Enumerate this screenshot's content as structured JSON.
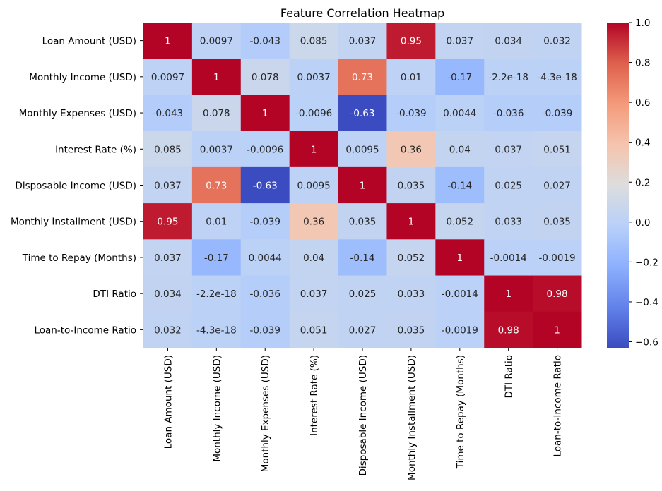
{
  "chart_data": {
    "type": "heatmap",
    "title": "Feature Correlation Heatmap",
    "xlabel": "",
    "ylabel": "",
    "labels": [
      "Loan Amount (USD)",
      "Monthly Income (USD)",
      "Monthly Expenses (USD)",
      "Interest Rate (%)",
      "Disposable Income (USD)",
      "Monthly Installment (USD)",
      "Time to Repay (Months)",
      "DTI Ratio",
      "Loan-to-Income Ratio"
    ],
    "values": [
      [
        1,
        0.0097,
        -0.043,
        0.085,
        0.037,
        0.95,
        0.037,
        0.034,
        0.032
      ],
      [
        0.0097,
        1,
        0.078,
        0.0037,
        0.73,
        0.01,
        -0.17,
        -2.2e-18,
        -4.3e-18
      ],
      [
        -0.043,
        0.078,
        1,
        -0.0096,
        -0.63,
        -0.039,
        0.0044,
        -0.036,
        -0.039
      ],
      [
        0.085,
        0.0037,
        -0.0096,
        1,
        0.0095,
        0.36,
        0.04,
        0.037,
        0.051
      ],
      [
        0.037,
        0.73,
        -0.63,
        0.0095,
        1,
        0.035,
        -0.14,
        0.025,
        0.027
      ],
      [
        0.95,
        0.01,
        -0.039,
        0.36,
        0.035,
        1,
        0.052,
        0.033,
        0.035
      ],
      [
        0.037,
        -0.17,
        0.0044,
        0.04,
        -0.14,
        0.052,
        1,
        -0.0014,
        -0.0019
      ],
      [
        0.034,
        -2.2e-18,
        -0.036,
        0.037,
        0.025,
        0.033,
        -0.0014,
        1,
        0.98
      ],
      [
        0.032,
        -4.3e-18,
        -0.039,
        0.051,
        0.027,
        0.035,
        -0.0019,
        0.98,
        1
      ]
    ],
    "annotations": [
      [
        "1",
        "0.0097",
        "-0.043",
        "0.085",
        "0.037",
        "0.95",
        "0.037",
        "0.034",
        "0.032"
      ],
      [
        "0.0097",
        "1",
        "0.078",
        "0.0037",
        "0.73",
        "0.01",
        "-0.17",
        "-2.2e-18",
        "-4.3e-18"
      ],
      [
        "-0.043",
        "0.078",
        "1",
        "-0.0096",
        "-0.63",
        "-0.039",
        "0.0044",
        "-0.036",
        "-0.039"
      ],
      [
        "0.085",
        "0.0037",
        "-0.0096",
        "1",
        "0.0095",
        "0.36",
        "0.04",
        "0.037",
        "0.051"
      ],
      [
        "0.037",
        "0.73",
        "-0.63",
        "0.0095",
        "1",
        "0.035",
        "-0.14",
        "0.025",
        "0.027"
      ],
      [
        "0.95",
        "0.01",
        "-0.039",
        "0.36",
        "0.035",
        "1",
        "0.052",
        "0.033",
        "0.035"
      ],
      [
        "0.037",
        "-0.17",
        "0.0044",
        "0.04",
        "-0.14",
        "0.052",
        "1",
        "-0.0014",
        "-0.0019"
      ],
      [
        "0.034",
        "-2.2e-18",
        "-0.036",
        "0.037",
        "0.025",
        "0.033",
        "-0.0014",
        "1",
        "0.98"
      ],
      [
        "0.032",
        "-4.3e-18",
        "-0.039",
        "0.051",
        "0.027",
        "0.035",
        "-0.0019",
        "0.98",
        "1"
      ]
    ],
    "colormap": "coolwarm",
    "colorbar": {
      "vmin": -0.63,
      "vmax": 1.0,
      "ticks": [
        1.0,
        0.8,
        0.6,
        0.4,
        0.2,
        0.0,
        -0.2,
        -0.4,
        -0.6
      ],
      "tick_labels": [
        "1.0",
        "0.8",
        "0.6",
        "0.4",
        "0.2",
        "0.0",
        "−0.2",
        "−0.4",
        "−0.6"
      ]
    },
    "grid": false,
    "legend": "colorbar-right"
  }
}
